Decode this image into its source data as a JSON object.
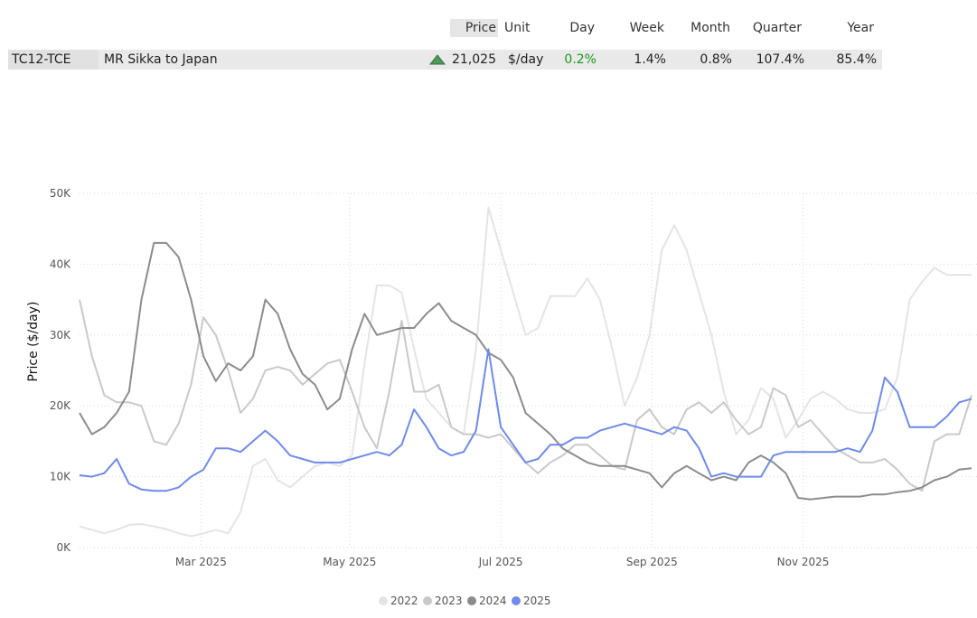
{
  "table": {
    "headers": {
      "price": "Price",
      "unit": "Unit",
      "day": "Day",
      "week": "Week",
      "month": "Month",
      "quarter": "Quarter",
      "year": "Year"
    },
    "row": {
      "code": "TC12-TCE",
      "route": "MR Sikka to Japan",
      "trend": "up",
      "price": "21,025",
      "unit": "$/day",
      "day": "0.2%",
      "week": "1.4%",
      "month": "0.8%",
      "quarter": "107.4%",
      "year": "85.4%"
    },
    "colors": {
      "positive": "#1a9a1a",
      "arrow_fill": "#4f9a5a",
      "arrow_stroke": "#2f6f3a"
    }
  },
  "chart_data": {
    "type": "line",
    "title": "",
    "xlabel": "",
    "ylabel": "Price ($/day)",
    "ylim": [
      0,
      50000
    ],
    "yticks": [
      0,
      10000,
      20000,
      30000,
      40000,
      50000
    ],
    "ytick_labels": [
      "0K",
      "10K",
      "20K",
      "30K",
      "40K",
      "50K"
    ],
    "xlim": [
      0,
      360
    ],
    "xticks": [
      49,
      109,
      170,
      231,
      292
    ],
    "xtick_labels": [
      "Mar 2025",
      "May 2025",
      "Jul 2025",
      "Sep 2025",
      "Nov 2025"
    ],
    "grid": true,
    "legend_position": "bottom",
    "x": [
      0,
      5,
      10,
      15,
      20,
      25,
      30,
      35,
      40,
      45,
      50,
      55,
      60,
      65,
      70,
      75,
      80,
      85,
      90,
      95,
      100,
      105,
      110,
      115,
      120,
      125,
      130,
      135,
      140,
      145,
      150,
      155,
      160,
      165,
      170,
      175,
      180,
      185,
      190,
      195,
      200,
      205,
      210,
      215,
      220,
      225,
      230,
      235,
      240,
      245,
      250,
      255,
      260,
      265,
      270,
      275,
      280,
      285,
      290,
      295,
      300,
      305,
      310,
      315,
      320,
      325,
      330,
      335,
      340,
      345,
      350,
      355,
      360
    ],
    "series": [
      {
        "name": "2022",
        "color": "#e4e4e4",
        "values": [
          3000,
          2500,
          2000,
          2500,
          3200,
          3300,
          3000,
          2600,
          2000,
          1600,
          2000,
          2500,
          2000,
          5000,
          11500,
          12500,
          9500,
          8500,
          10000,
          11500,
          12000,
          11500,
          13000,
          26000,
          37000,
          37000,
          36000,
          28000,
          21000,
          19000,
          17000,
          16000,
          28000,
          48000,
          42000,
          36000,
          30000,
          31000,
          35500,
          35500,
          35500,
          38000,
          35000,
          28000,
          20000,
          24000,
          30000,
          42000,
          45500,
          42000,
          36000,
          30000,
          22000,
          16000,
          18000,
          22500,
          21000,
          15500,
          18000,
          21000,
          22000,
          21000,
          19500,
          19000,
          19000,
          19500,
          24000,
          35000,
          37500,
          39500,
          38500,
          38500,
          38500
        ]
      },
      {
        "name": "2023",
        "color": "#c9c9c9",
        "values": [
          35000,
          27000,
          21500,
          20500,
          20500,
          20000,
          15000,
          14500,
          17500,
          23000,
          32500,
          30000,
          25000,
          19000,
          21000,
          25000,
          25500,
          25000,
          23000,
          24500,
          26000,
          26500,
          22000,
          17000,
          14000,
          22000,
          32000,
          22000,
          22000,
          23000,
          17000,
          16000,
          16000,
          15500,
          16000,
          14000,
          12000,
          10500,
          12000,
          13000,
          14500,
          14500,
          13000,
          11500,
          11000,
          18000,
          19500,
          17000,
          16000,
          19500,
          20500,
          19000,
          20500,
          18000,
          16000,
          17000,
          22500,
          21500,
          17000,
          18000,
          16000,
          14000,
          13000,
          12000,
          12000,
          12500,
          11000,
          9000,
          8000,
          15000,
          16000,
          16000,
          21500
        ]
      },
      {
        "name": "2024",
        "color": "#8c8c8c",
        "values": [
          19000,
          16000,
          17000,
          19000,
          22000,
          35000,
          43000,
          43000,
          41000,
          35000,
          27000,
          23500,
          26000,
          25000,
          27000,
          35000,
          33000,
          28000,
          24500,
          23000,
          19500,
          21000,
          28000,
          33000,
          30000,
          30500,
          31000,
          31000,
          33000,
          34500,
          32000,
          31000,
          30000,
          27500,
          26500,
          24000,
          19000,
          17500,
          16000,
          14000,
          13000,
          12000,
          11500,
          11500,
          11500,
          11000,
          10500,
          8500,
          10500,
          11500,
          10500,
          9500,
          10000,
          9500,
          12000,
          13000,
          12000,
          10500,
          7000,
          6800,
          7000,
          7200,
          7200,
          7200,
          7500,
          7500,
          7800,
          8000,
          8500,
          9500,
          10000,
          11000,
          11200
        ]
      },
      {
        "name": "2025",
        "color": "#6f8ae8",
        "values": [
          10200,
          10000,
          10500,
          12500,
          9000,
          8200,
          8000,
          8000,
          8500,
          10000,
          11000,
          14000,
          14000,
          13500,
          15000,
          16500,
          15000,
          13000,
          12500,
          12000,
          12000,
          12000,
          12500,
          13000,
          13500,
          13000,
          14500,
          19500,
          17000,
          14000,
          13000,
          13500,
          16500,
          28000,
          17000,
          14500,
          12000,
          12500,
          14500,
          14500,
          15500,
          15500,
          16500,
          17000,
          17500,
          17000,
          16500,
          16000,
          17000,
          16500,
          14000,
          10000,
          10500,
          10000,
          10000,
          10000,
          13000,
          13500,
          13500,
          13500,
          13500,
          13500,
          14000,
          13500,
          16500,
          24000,
          22000,
          17000,
          17000,
          17000,
          18500,
          20500,
          21000
        ]
      }
    ]
  }
}
